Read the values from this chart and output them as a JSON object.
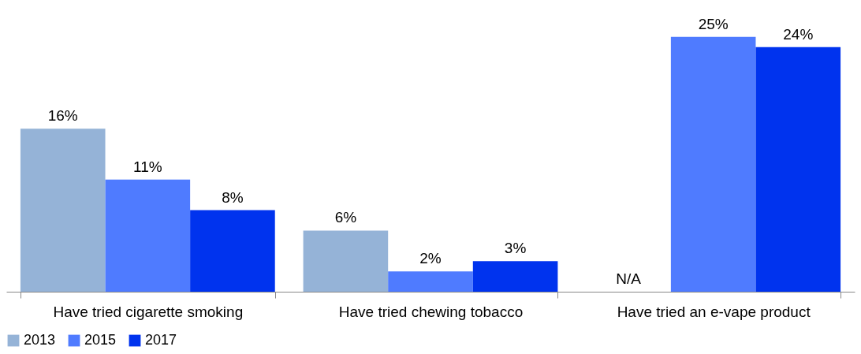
{
  "chart_data": {
    "type": "bar",
    "categories": [
      "Have tried cigarette smoking",
      "Have tried chewing tobacco",
      "Have tried an e-vape product"
    ],
    "series": [
      {
        "name": "2013",
        "color": "#95b3d7",
        "values": [
          16,
          6,
          null
        ],
        "value_labels": [
          "16%",
          "6%",
          "N/A"
        ]
      },
      {
        "name": "2015",
        "color": "#4f7bff",
        "values": [
          11,
          2,
          25
        ],
        "value_labels": [
          "11%",
          "2%",
          "25%"
        ]
      },
      {
        "name": "2017",
        "color": "#0033ee",
        "values": [
          8,
          3,
          24
        ],
        "value_labels": [
          "8%",
          "3%",
          "24%"
        ]
      }
    ],
    "legend": "bottom",
    "grid": false
  }
}
